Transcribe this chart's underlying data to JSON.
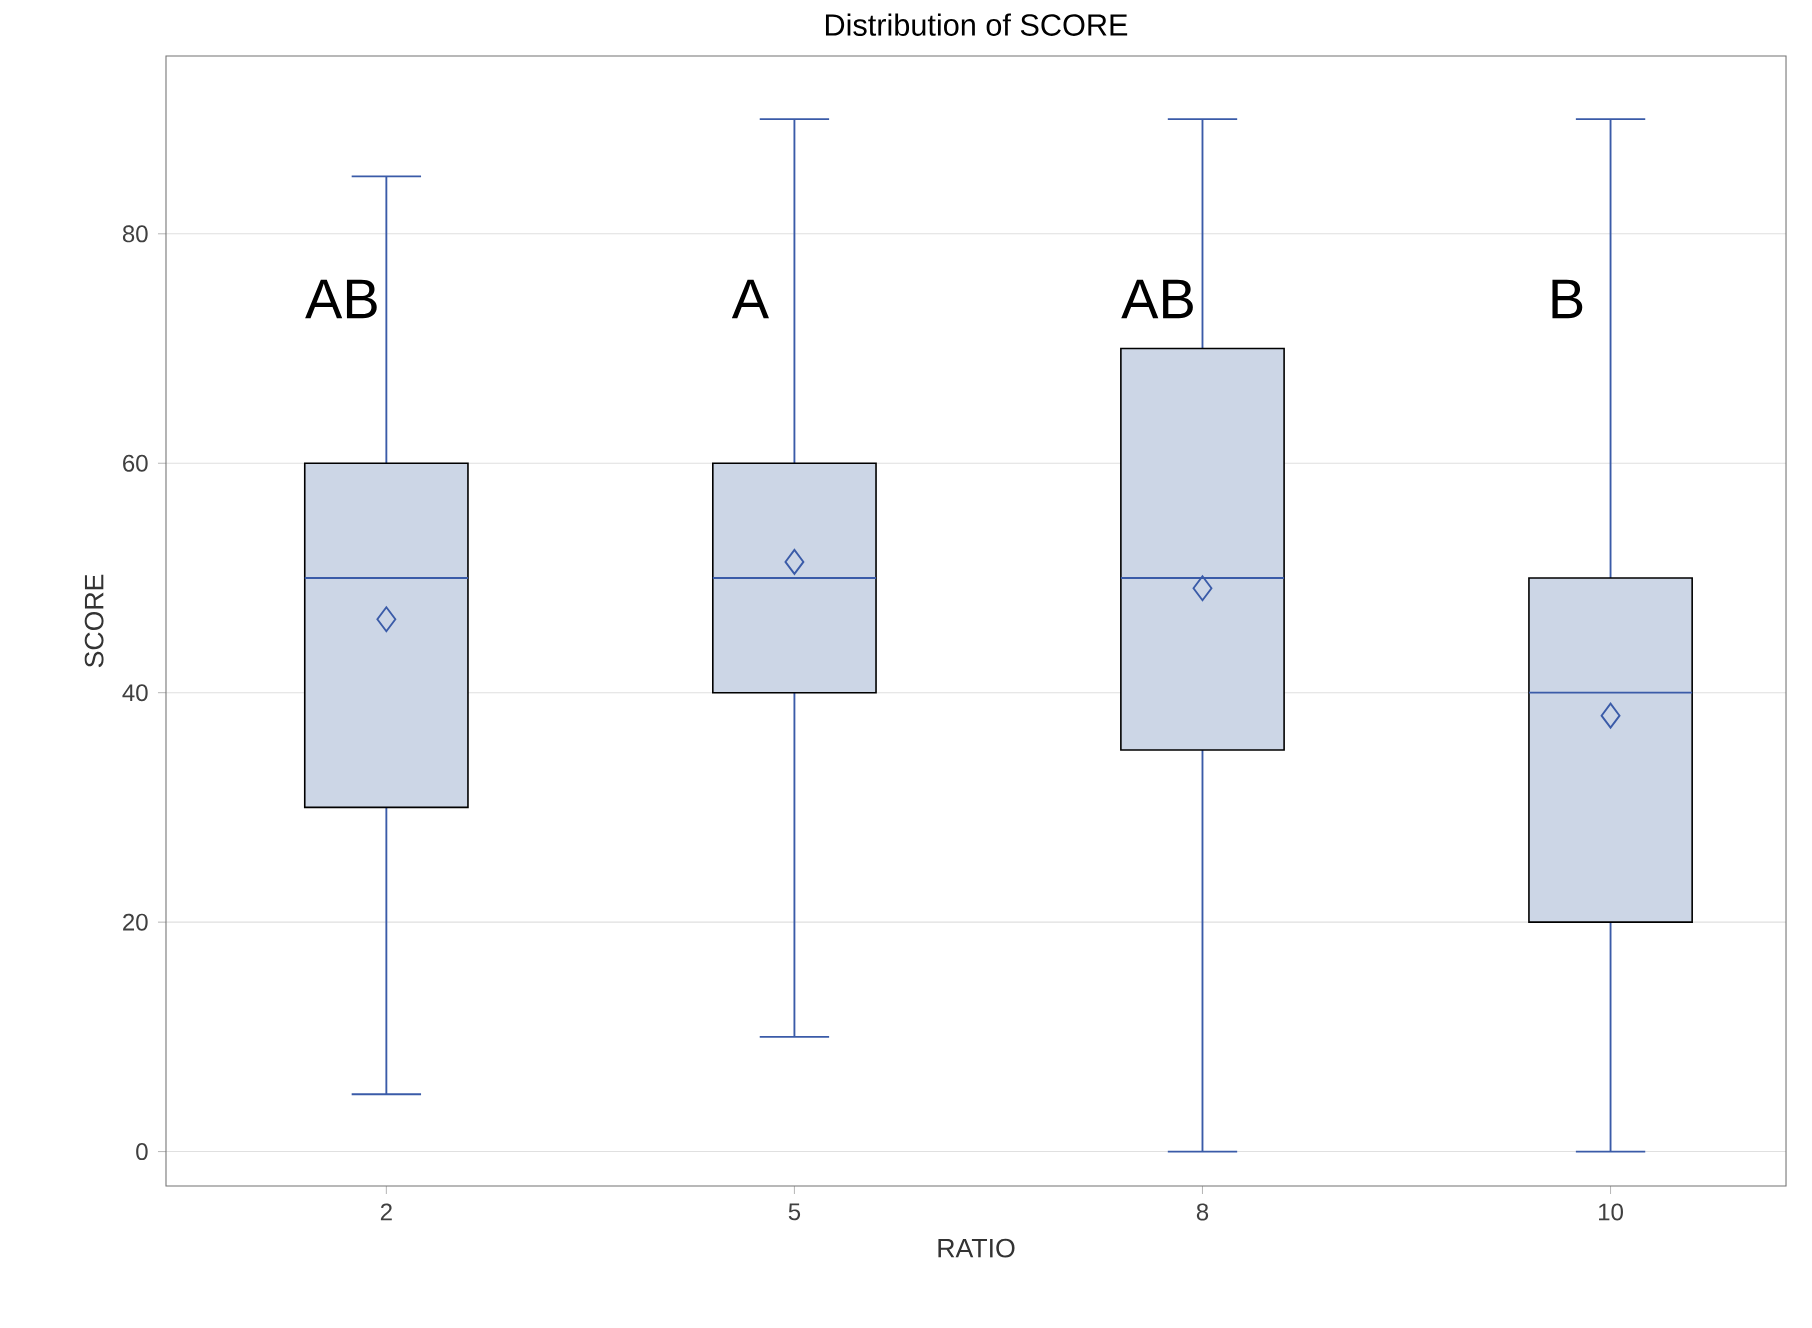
{
  "chart_data": {
    "type": "box",
    "title": "Distribution of SCORE",
    "xlabel": "RATIO",
    "ylabel": "SCORE",
    "categories": [
      "2",
      "5",
      "8",
      "10"
    ],
    "boxes": [
      {
        "low": 5,
        "q1": 30,
        "median": 50,
        "q3": 60,
        "high": 85,
        "mean": 46.4
      },
      {
        "low": 10,
        "q1": 40,
        "median": 50,
        "q3": 60,
        "high": 90,
        "mean": 51.4
      },
      {
        "low": 0,
        "q1": 35,
        "median": 50,
        "q3": 70,
        "high": 90,
        "mean": 49.1
      },
      {
        "low": 0,
        "q1": 20,
        "median": 40,
        "q3": 50,
        "high": 90,
        "mean": 38.0
      }
    ],
    "color": "#ccd6e6",
    "ylim": [
      -3,
      95.5
    ],
    "yticks": [
      0,
      20,
      40,
      60,
      80
    ],
    "grid": "y",
    "annotations": [
      "AB",
      "A",
      "AB",
      "B"
    ]
  }
}
